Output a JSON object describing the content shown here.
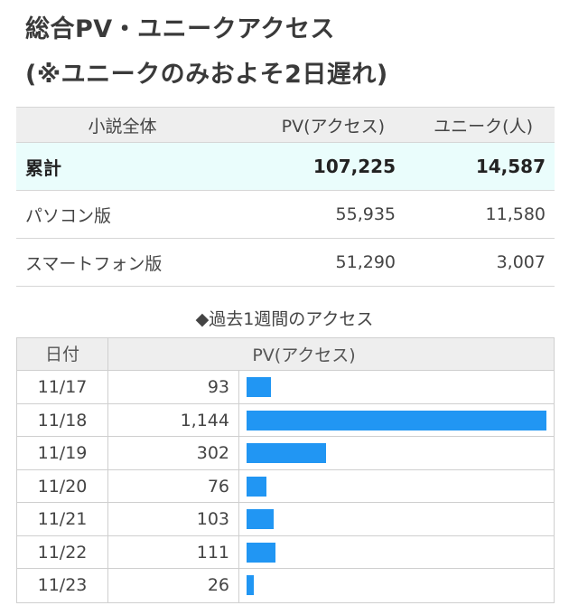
{
  "title": {
    "line1": "総合PV・ユニークアクセス",
    "line2": "(※ユニークのみおよそ2日遅れ)"
  },
  "summary": {
    "headers": [
      "小説全体",
      "PV(アクセス)",
      "ユニーク(人)"
    ],
    "rows": [
      {
        "label": "累計",
        "pv": "107,225",
        "unique": "14,587"
      },
      {
        "label": "パソコン版",
        "pv": "55,935",
        "unique": "11,580"
      },
      {
        "label": "スマートフォン版",
        "pv": "51,290",
        "unique": "3,007"
      }
    ]
  },
  "weekly": {
    "title": "◆過去1週間のアクセス",
    "headers": [
      "日付",
      "PV(アクセス)"
    ],
    "max_pv": 1144,
    "bar_color": "#2196f3",
    "rows": [
      {
        "date": "11/17",
        "pv_label": "93",
        "pv": 93
      },
      {
        "date": "11/18",
        "pv_label": "1,144",
        "pv": 1144
      },
      {
        "date": "11/19",
        "pv_label": "302",
        "pv": 302
      },
      {
        "date": "11/20",
        "pv_label": "76",
        "pv": 76
      },
      {
        "date": "11/21",
        "pv_label": "103",
        "pv": 103
      },
      {
        "date": "11/22",
        "pv_label": "111",
        "pv": 111
      },
      {
        "date": "11/23",
        "pv_label": "26",
        "pv": 26
      }
    ]
  }
}
